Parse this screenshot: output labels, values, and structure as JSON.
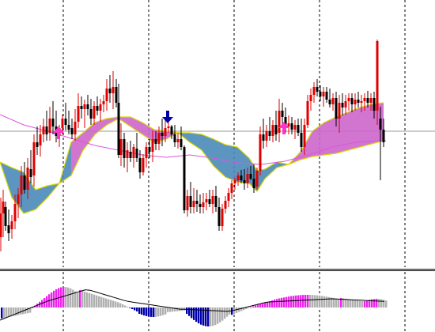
{
  "colors": {
    "background": "#ffffff",
    "grid": "#000000",
    "bull_candle": "#e00000",
    "bear_candle": "#000000",
    "cloud_bull_fill": "#cc66cc",
    "cloud_bear_fill": "#4a8ab8",
    "cloud_edge": "#d8d800",
    "ma_line": "#dd55dd",
    "level_line": "#999999",
    "buy_arrow": "#ff33cc",
    "sell_arrow": "#0000aa",
    "osc_positive_strong": "#ee22ee",
    "osc_positive_weak": "#b0b0b0",
    "osc_negative_strong": "#0000aa",
    "osc_negative_weak": "#b0b0b0",
    "osc_signal": "#000000"
  },
  "icons": {
    "buy": "up-arrow",
    "sell": "down-arrow"
  }
}
